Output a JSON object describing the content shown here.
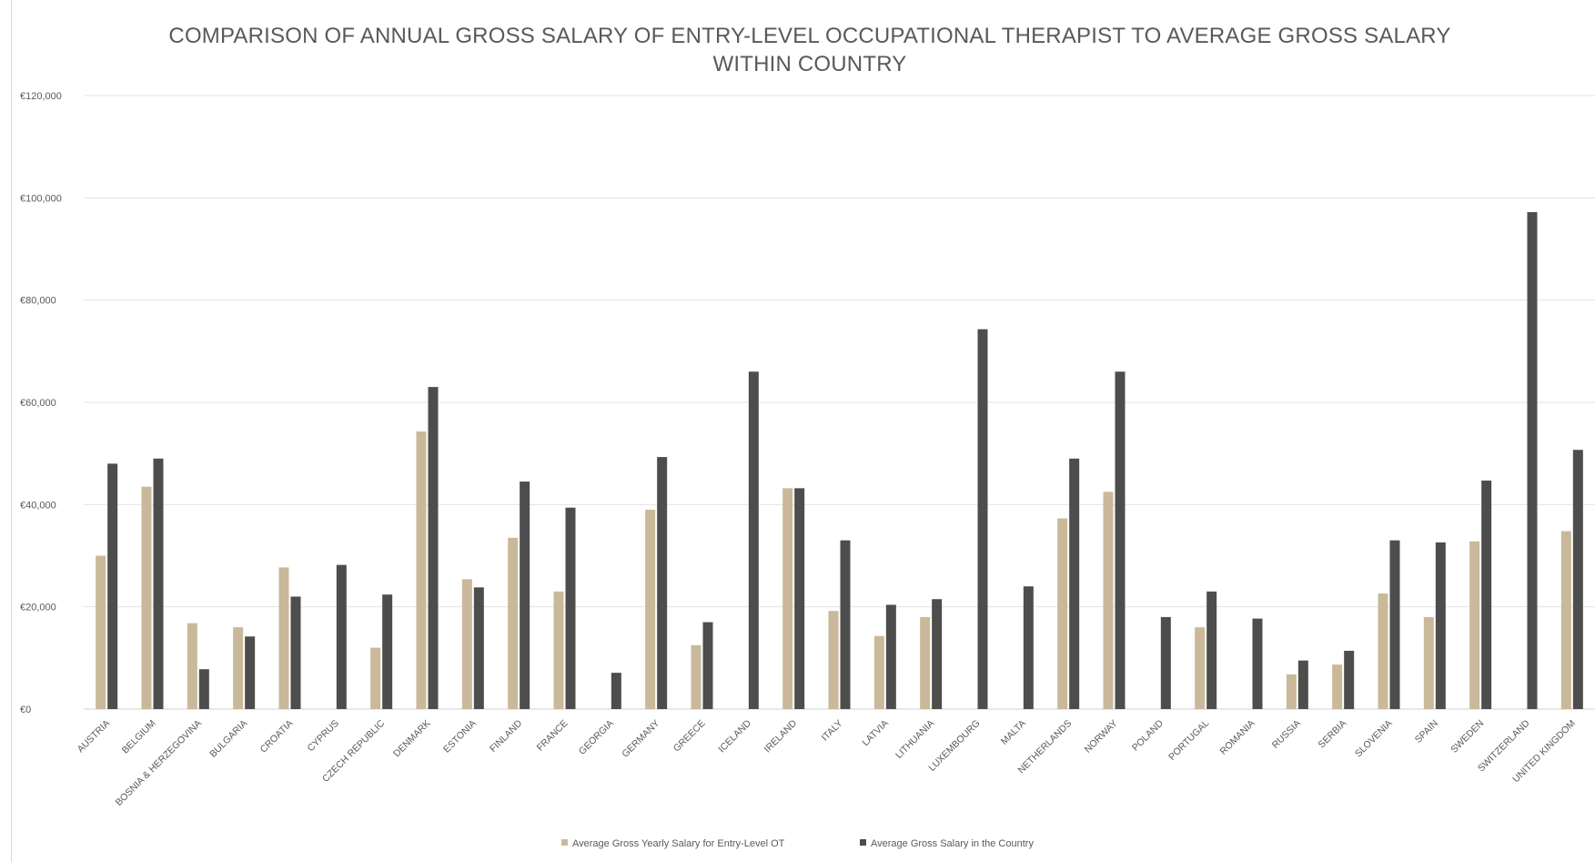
{
  "chart_data": {
    "type": "bar",
    "title": "COMPARISON OF ANNUAL GROSS SALARY OF ENTRY-LEVEL OCCUPATIONAL THERAPIST TO AVERAGE GROSS SALARY WITHIN COUNTRY",
    "title_lines": [
      "COMPARISON OF ANNUAL GROSS SALARY OF ENTRY-LEVEL OCCUPATIONAL THERAPIST TO AVERAGE GROSS SALARY",
      "WITHIN COUNTRY"
    ],
    "xlabel": "",
    "ylabel": "",
    "ylim": [
      0,
      120000
    ],
    "y_ticks": [
      0,
      20000,
      40000,
      60000,
      80000,
      100000,
      120000
    ],
    "y_tick_labels": [
      "€0",
      "€20,000",
      "€40,000",
      "€60,000",
      "€80,000",
      "€100,000",
      "€120,000"
    ],
    "grid": true,
    "legend_position": "bottom",
    "categories": [
      "AUSTRIA",
      "BELGIUM",
      "BOSNIA & HERZEGOVINA",
      "BULGARIA",
      "CROATIA",
      "CYPRUS",
      "CZECH REPUBLIC",
      "DENMARK",
      "ESTONIA",
      "FINLAND",
      "FRANCE",
      "GEORGIA",
      "GERMANY",
      "GREECE",
      "ICELAND",
      "IRELAND",
      "ITALY",
      "LATVIA",
      "LITHUANIA",
      "LUXEMBOURG",
      "MALTA",
      "NETHERLANDS",
      "NORWAY",
      "POLAND",
      "PORTUGAL",
      "ROMANIA",
      "RUSSIA",
      "SERBIA",
      "SLOVENIA",
      "SPAIN",
      "SWEDEN",
      "SWITZERLAND",
      "UNITED KINGDOM"
    ],
    "series": [
      {
        "name": "Average Gross Yearly Salary for Entry-Level OT",
        "color": "#c9b99a",
        "values": [
          30000,
          43500,
          16800,
          16000,
          27700,
          null,
          12000,
          54300,
          25400,
          33500,
          23000,
          null,
          39000,
          12500,
          null,
          43200,
          19200,
          14300,
          18000,
          null,
          null,
          37300,
          42500,
          null,
          16000,
          null,
          6800,
          8700,
          22600,
          18000,
          32800,
          null,
          34800
        ]
      },
      {
        "name": "Average Gross Salary in the Country",
        "color": "#4d4d4d",
        "values": [
          48000,
          49000,
          7800,
          14200,
          22000,
          28200,
          22400,
          63000,
          23800,
          44500,
          39400,
          7100,
          49300,
          17000,
          66000,
          43200,
          33000,
          20400,
          21500,
          74300,
          24000,
          49000,
          66000,
          18000,
          23000,
          17700,
          9500,
          11400,
          33000,
          32600,
          44700,
          97200,
          50700
        ]
      }
    ]
  }
}
